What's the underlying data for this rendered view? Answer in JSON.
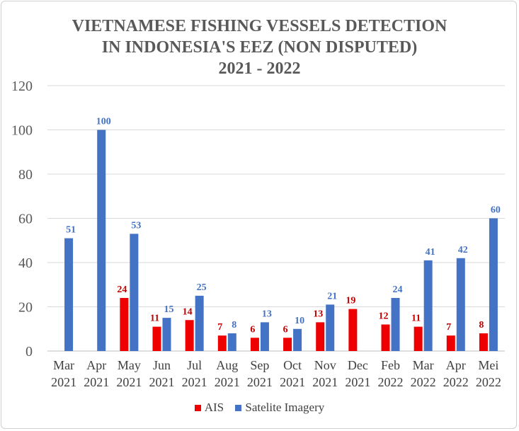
{
  "chart_data": {
    "type": "bar",
    "title_lines": [
      "VIETNAMESE FISHING VESSELS DETECTION",
      "IN INDONESIA'S EEZ (NON DISPUTED)",
      "2021 - 2022"
    ],
    "categories": [
      [
        "Mar",
        "2021"
      ],
      [
        "Apr",
        "2021"
      ],
      [
        "May",
        "2021"
      ],
      [
        "Jun",
        "2021"
      ],
      [
        "Jul",
        "2021"
      ],
      [
        "Aug",
        "2021"
      ],
      [
        "Sep",
        "2021"
      ],
      [
        "Oct",
        "2021"
      ],
      [
        "Nov",
        "2021"
      ],
      [
        "Dec",
        "2021"
      ],
      [
        "Feb",
        "2022"
      ],
      [
        "Mar",
        "2022"
      ],
      [
        "Apr",
        "2022"
      ],
      [
        "Mei",
        "2022"
      ]
    ],
    "series": [
      {
        "name": "AIS",
        "color": "#ee0000",
        "values": [
          null,
          null,
          24,
          11,
          14,
          7,
          6,
          6,
          13,
          19,
          12,
          11,
          7,
          8
        ]
      },
      {
        "name": "Satelite Imagery",
        "color": "#4472c4",
        "values": [
          51,
          100,
          53,
          15,
          25,
          8,
          13,
          10,
          21,
          null,
          24,
          41,
          42,
          60
        ]
      }
    ],
    "yticks": [
      0,
      20,
      40,
      60,
      80,
      100,
      120
    ],
    "ylim": [
      0,
      120
    ],
    "grid": true,
    "legend_position": "bottom",
    "xlabel": "",
    "ylabel": ""
  }
}
